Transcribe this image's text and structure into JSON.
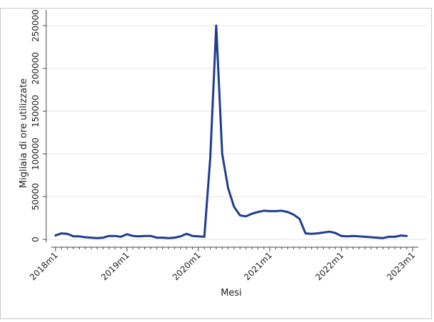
{
  "chart_data": {
    "type": "line",
    "xlabel": "Mesi",
    "ylabel": "Migliaia di ore utilizzate",
    "ylim": [
      0,
      250000
    ],
    "yticks": [
      0,
      50000,
      100000,
      150000,
      200000,
      250000
    ],
    "ytick_labels": [
      "0",
      "50000",
      "100000",
      "150000",
      "200000",
      "250000"
    ],
    "xlim": [
      "2018-01",
      "2023-01"
    ],
    "xticks": [
      "2018-01",
      "2019-01",
      "2020-01",
      "2021-01",
      "2022-01",
      "2023-01"
    ],
    "xtick_labels": [
      "2018m1",
      "2019m1",
      "2020m1",
      "2021m1",
      "2022m1",
      "2023m1"
    ],
    "grid": true,
    "legend": "none",
    "line_color": "#1f3d8f",
    "grid_color": "#e3e3e3",
    "series": [
      {
        "x": [
          "2018-01",
          "2018-02",
          "2018-03",
          "2018-04",
          "2018-05",
          "2018-06",
          "2018-07",
          "2018-08",
          "2018-09",
          "2018-10",
          "2018-11",
          "2018-12",
          "2019-01",
          "2019-02",
          "2019-03",
          "2019-04",
          "2019-05",
          "2019-06",
          "2019-07",
          "2019-08",
          "2019-09",
          "2019-10",
          "2019-11",
          "2019-12",
          "2020-01",
          "2020-02",
          "2020-03",
          "2020-04",
          "2020-05",
          "2020-06",
          "2020-07",
          "2020-08",
          "2020-09",
          "2020-10",
          "2020-11",
          "2020-12",
          "2021-01",
          "2021-02",
          "2021-03",
          "2021-04",
          "2021-05",
          "2021-06",
          "2021-07",
          "2021-08",
          "2021-09",
          "2021-10",
          "2021-11",
          "2021-12",
          "2022-01",
          "2022-02",
          "2022-03",
          "2022-04",
          "2022-05",
          "2022-06",
          "2022-07",
          "2022-08",
          "2022-09",
          "2022-10",
          "2022-11",
          "2022-12"
        ],
        "values": [
          4500,
          7000,
          6500,
          3500,
          3500,
          2500,
          2000,
          1500,
          2000,
          4000,
          4000,
          3000,
          6000,
          4000,
          3500,
          4000,
          4000,
          2000,
          2000,
          1500,
          2000,
          3500,
          6500,
          4000,
          3500,
          3000,
          95000,
          250000,
          100000,
          60000,
          38000,
          28000,
          27000,
          30000,
          32000,
          33500,
          33000,
          33000,
          33500,
          32000,
          29000,
          24000,
          7000,
          6500,
          7000,
          8000,
          9000,
          7500,
          4000,
          3500,
          4000,
          3500,
          3000,
          2500,
          2000,
          1500,
          3000,
          3000,
          4500,
          4000
        ]
      }
    ]
  }
}
